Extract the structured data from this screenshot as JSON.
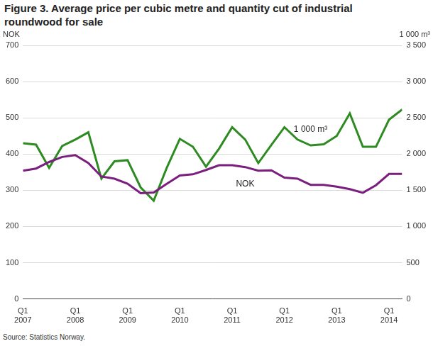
{
  "chart_data": {
    "type": "line",
    "title": "Figure 3. Average price per cubic metre and quantity cut of industrial roundwood for sale",
    "source": "Source: Statistics Norway.",
    "ylabel": "NOK",
    "y2label": "1 000 m³",
    "categories": [
      "Q1 2007",
      null,
      null,
      null,
      "Q1 2008",
      null,
      null,
      null,
      "Q1 2009",
      null,
      null,
      null,
      "Q1 2010",
      null,
      null,
      null,
      "Q1 2011",
      null,
      null,
      null,
      "Q1 2012",
      null,
      null,
      null,
      "Q1 2013",
      null,
      null,
      null,
      "Q1 2014",
      null
    ],
    "series": [
      {
        "name": "NOK",
        "color": "#7a1f7e",
        "axis": "y",
        "values": [
          354,
          360,
          378,
          392,
          397,
          375,
          338,
          332,
          318,
          292,
          294,
          318,
          341,
          344,
          356,
          369,
          369,
          364,
          354,
          355,
          335,
          332,
          315,
          315,
          310,
          303,
          293,
          314,
          345,
          345
        ]
      },
      {
        "name": "1 000 m³",
        "color": "#2e8b22",
        "axis": "y2",
        "values": [
          2150,
          2130,
          1810,
          2110,
          2200,
          2300,
          1660,
          1900,
          1915,
          1540,
          1355,
          1810,
          2210,
          2100,
          1825,
          2075,
          2370,
          2200,
          1875,
          2125,
          2370,
          2200,
          2120,
          2135,
          2250,
          2560,
          2100,
          2100,
          2475,
          2615
        ]
      }
    ],
    "ylim": [
      0,
      700
    ],
    "yticks": [
      0,
      100,
      200,
      300,
      400,
      500,
      600,
      700
    ],
    "y2lim": [
      0,
      3500
    ],
    "y2ticks": [
      0,
      {
        "value": 500,
        "label": "500"
      },
      {
        "value": 1000,
        "label": "1 000"
      },
      {
        "value": 1500,
        "label": "1 500"
      },
      {
        "value": 2000,
        "label": "2 000"
      },
      {
        "value": 2500,
        "label": "2 500"
      },
      {
        "value": 3000,
        "label": "3 000"
      },
      {
        "value": 3500,
        "label": "3 500"
      }
    ],
    "grid": true,
    "legend": false
  }
}
